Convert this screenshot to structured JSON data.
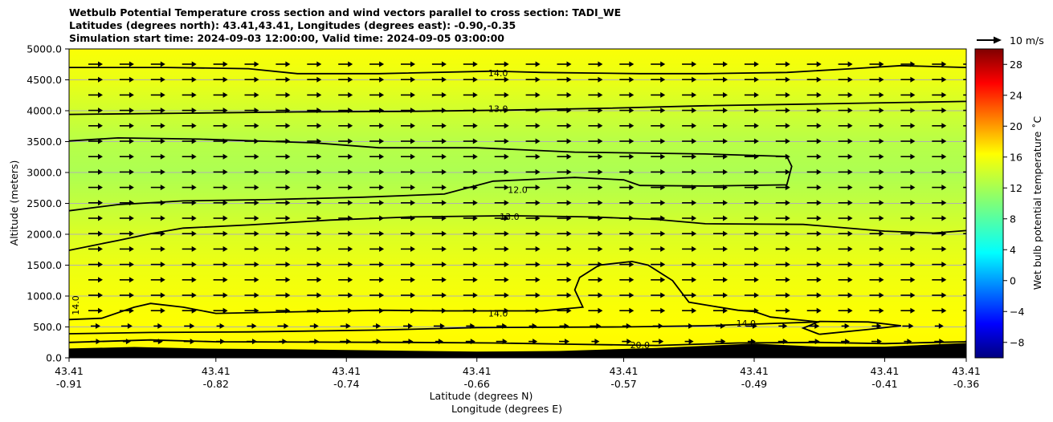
{
  "chart_data": {
    "type": "heatmap",
    "title_lines": [
      "Wetbulb Potential Temperature cross section and wind vectors parallel to cross section: TADI_WE",
      "Latitudes (degrees north): 43.41,43.41, Longitudes (degrees east): -0.90,-0.35",
      "Simulation start time: 2024-09-03 12:00:00, Valid time: 2024-09-05 03:00:00"
    ],
    "ylabel": "Altitude (meters)",
    "xlabel_lat": "Latitude (degrees N)",
    "xlabel_lon": "Longitude (degrees E)",
    "ylim": [
      0,
      5000
    ],
    "y_ticks": [
      0,
      500,
      1000,
      1500,
      2000,
      2500,
      3000,
      3500,
      4000,
      4500,
      5000
    ],
    "y_tick_labels": [
      "0.0",
      "500.0",
      "1000.0",
      "1500.0",
      "2000.0",
      "2500.0",
      "3000.0",
      "3500.0",
      "4000.0",
      "4500.0",
      "5000.0"
    ],
    "x_range": [
      -0.91,
      -0.36
    ],
    "x_ticks": [
      {
        "lat": "43.41",
        "lon": "-0.91",
        "x": -0.91
      },
      {
        "lat": "43.41",
        "lon": "-0.82",
        "x": -0.82
      },
      {
        "lat": "43.41",
        "lon": "-0.74",
        "x": -0.74
      },
      {
        "lat": "43.41",
        "lon": "-0.66",
        "x": -0.66
      },
      {
        "lat": "43.41",
        "lon": "-0.57",
        "x": -0.57
      },
      {
        "lat": "43.41",
        "lon": "-0.49",
        "x": -0.49
      },
      {
        "lat": "43.41",
        "lon": "-0.41",
        "x": -0.41
      },
      {
        "lat": "43.41",
        "lon": "-0.36",
        "x": -0.36
      }
    ],
    "colorbar": {
      "label": "Wet bulb potential temperature ˚C",
      "range": [
        -10,
        30
      ],
      "ticks": [
        -8,
        -4,
        0,
        4,
        8,
        12,
        16,
        20,
        24,
        28
      ],
      "tick_labels": [
        "−8",
        "−4",
        "0",
        "4",
        "8",
        "12",
        "16",
        "20",
        "24",
        "28"
      ]
    },
    "wind_key": {
      "label": "10 m/s"
    },
    "background_field": [
      {
        "alt": 0,
        "value": 15.3
      },
      {
        "alt": 500,
        "value": 15.0
      },
      {
        "alt": 1000,
        "value": 14.7
      },
      {
        "alt": 1500,
        "value": 14.3
      },
      {
        "alt": 2000,
        "value": 13.6
      },
      {
        "alt": 2500,
        "value": 12.6
      },
      {
        "alt": 3000,
        "value": 11.8
      },
      {
        "alt": 3500,
        "value": 12.2
      },
      {
        "alt": 4000,
        "value": 13.2
      },
      {
        "alt": 4500,
        "value": 14.2
      },
      {
        "alt": 5000,
        "value": 14.8
      }
    ],
    "terrain": [
      {
        "x": -0.91,
        "alt": 150
      },
      {
        "x": -0.87,
        "alt": 175
      },
      {
        "x": -0.83,
        "alt": 150
      },
      {
        "x": -0.78,
        "alt": 140
      },
      {
        "x": -0.72,
        "alt": 120
      },
      {
        "x": -0.66,
        "alt": 100
      },
      {
        "x": -0.61,
        "alt": 110
      },
      {
        "x": -0.55,
        "alt": 160
      },
      {
        "x": -0.49,
        "alt": 230
      },
      {
        "x": -0.45,
        "alt": 180
      },
      {
        "x": -0.41,
        "alt": 180
      },
      {
        "x": -0.38,
        "alt": 215
      },
      {
        "x": -0.36,
        "alt": 240
      }
    ],
    "contours": [
      {
        "level": "14.0",
        "points": [
          [
            -0.91,
            4700
          ],
          [
            -0.85,
            4700
          ],
          [
            -0.8,
            4680
          ],
          [
            -0.77,
            4600
          ],
          [
            -0.72,
            4600
          ],
          [
            -0.65,
            4640
          ],
          [
            -0.62,
            4620
          ],
          [
            -0.56,
            4600
          ],
          [
            -0.52,
            4600
          ],
          [
            -0.47,
            4620
          ],
          [
            -0.43,
            4680
          ],
          [
            -0.4,
            4730
          ],
          [
            -0.36,
            4700
          ]
        ],
        "label_at": [
          -0.647,
          4610
        ]
      },
      {
        "level": "13.0",
        "points": [
          [
            -0.91,
            3940
          ],
          [
            -0.84,
            3960
          ],
          [
            -0.77,
            3980
          ],
          [
            -0.7,
            3990
          ],
          [
            -0.64,
            4010
          ],
          [
            -0.58,
            4040
          ],
          [
            -0.52,
            4080
          ],
          [
            -0.45,
            4110
          ],
          [
            -0.36,
            4150
          ]
        ],
        "label_at": [
          -0.647,
          4030
        ]
      },
      {
        "level": "12.0",
        "points": [
          [
            -0.91,
            3510
          ],
          [
            -0.88,
            3560
          ],
          [
            -0.83,
            3540
          ],
          [
            -0.76,
            3480
          ],
          [
            -0.72,
            3400
          ],
          [
            -0.66,
            3400
          ],
          [
            -0.6,
            3330
          ],
          [
            -0.52,
            3300
          ],
          [
            -0.47,
            3260
          ],
          [
            -0.467,
            3100
          ],
          [
            -0.47,
            2800
          ],
          [
            -0.52,
            2780
          ],
          [
            -0.56,
            2790
          ],
          [
            -0.57,
            2880
          ],
          [
            -0.6,
            2920
          ],
          [
            -0.65,
            2860
          ],
          [
            -0.68,
            2650
          ],
          [
            -0.73,
            2600
          ],
          [
            -0.79,
            2560
          ],
          [
            -0.84,
            2540
          ],
          [
            -0.88,
            2480
          ],
          [
            -0.91,
            2380
          ]
        ],
        "label_at": [
          -0.635,
          2720
        ]
      },
      {
        "level": "13.0",
        "points": [
          [
            -0.91,
            1740
          ],
          [
            -0.88,
            1900
          ],
          [
            -0.86,
            2010
          ],
          [
            -0.84,
            2100
          ],
          [
            -0.8,
            2150
          ],
          [
            -0.75,
            2230
          ],
          [
            -0.7,
            2280
          ],
          [
            -0.64,
            2300
          ],
          [
            -0.59,
            2280
          ],
          [
            -0.55,
            2240
          ],
          [
            -0.52,
            2170
          ],
          [
            -0.46,
            2160
          ],
          [
            -0.41,
            2050
          ],
          [
            -0.38,
            2020
          ],
          [
            -0.36,
            2060
          ]
        ],
        "label_at": [
          -0.64,
          2285
        ]
      },
      {
        "level": "14.0",
        "points": [
          [
            -0.91,
            620
          ],
          [
            -0.89,
            640
          ],
          [
            -0.87,
            820
          ],
          [
            -0.86,
            880
          ],
          [
            -0.84,
            820
          ],
          [
            -0.82,
            720
          ],
          [
            -0.78,
            740
          ],
          [
            -0.72,
            770
          ],
          [
            -0.68,
            760
          ],
          [
            -0.62,
            760
          ],
          [
            -0.595,
            820
          ],
          [
            -0.6,
            1100
          ],
          [
            -0.597,
            1300
          ],
          [
            -0.585,
            1500
          ],
          [
            -0.565,
            1560
          ],
          [
            -0.555,
            1500
          ],
          [
            -0.54,
            1250
          ],
          [
            -0.53,
            900
          ],
          [
            -0.5,
            770
          ],
          [
            -0.49,
            750
          ],
          [
            -0.48,
            660
          ],
          [
            -0.45,
            580
          ],
          [
            -0.52,
            520
          ],
          [
            -0.57,
            500
          ],
          [
            -0.66,
            490
          ],
          [
            -0.72,
            450
          ],
          [
            -0.8,
            420
          ],
          [
            -0.86,
            410
          ],
          [
            -0.91,
            390
          ]
        ],
        "label_at": [
          -0.647,
          720
        ]
      },
      {
        "level": "14.0",
        "points": [
          [
            -0.45,
            380
          ],
          [
            -0.46,
            480
          ],
          [
            -0.45,
            590
          ],
          [
            -0.42,
            580
          ],
          [
            -0.4,
            520
          ],
          [
            -0.42,
            460
          ],
          [
            -0.45,
            380
          ]
        ],
        "label_at": [
          -0.495,
          560
        ]
      },
      {
        "level": "20.0",
        "points": [
          [
            -0.91,
            250
          ],
          [
            -0.86,
            290
          ],
          [
            -0.82,
            260
          ],
          [
            -0.7,
            250
          ],
          [
            -0.65,
            240
          ],
          [
            -0.6,
            220
          ],
          [
            -0.55,
            200
          ],
          [
            -0.5,
            240
          ],
          [
            -0.45,
            250
          ],
          [
            -0.41,
            230
          ],
          [
            -0.38,
            250
          ],
          [
            -0.36,
            260
          ]
        ],
        "label_at": [
          -0.56,
          210
        ]
      }
    ],
    "vertical_label": {
      "level": "14.0"
    },
    "wind_note": "arrows point mainly eastward (+x) at all levels"
  }
}
